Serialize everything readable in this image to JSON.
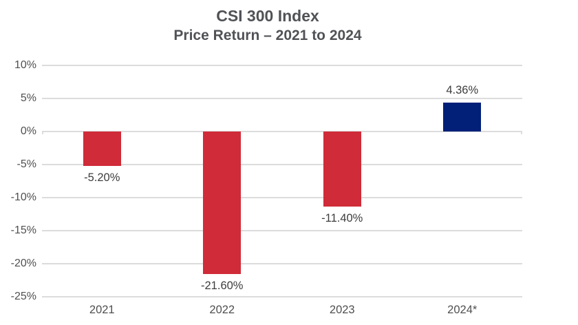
{
  "header": {
    "title": "CSI 300 Index",
    "subtitle": "Price Return – 2021 to 2024"
  },
  "colors": {
    "negative_bar": "#CF2B38",
    "positive_bar": "#032078",
    "gridline": "#DCDCDC",
    "axis_text": "#4F4F4F",
    "value_label_text": "#3C3C3E",
    "title_text": "#505256",
    "background": "#FFFFFF"
  },
  "chart_data": {
    "type": "bar",
    "title": "CSI 300 Index",
    "subtitle": "Price Return – 2021 to 2024",
    "categories": [
      "2021",
      "2022",
      "2023",
      "2024*"
    ],
    "values": [
      -5.2,
      -21.6,
      -11.4,
      4.36
    ],
    "value_labels": [
      "-5.20%",
      "-21.60%",
      "-11.40%",
      "4.36%"
    ],
    "xlabel": "",
    "ylabel": "",
    "ylim": [
      -25,
      10
    ],
    "ytick_step": 5,
    "ytick_labels": [
      "10%",
      "5%",
      "0%",
      "-5%",
      "-10%",
      "-15%",
      "-20%",
      "-25%"
    ],
    "grid": true,
    "legend": false,
    "bar_colors": [
      "#CF2B38",
      "#CF2B38",
      "#CF2B38",
      "#032078"
    ]
  }
}
